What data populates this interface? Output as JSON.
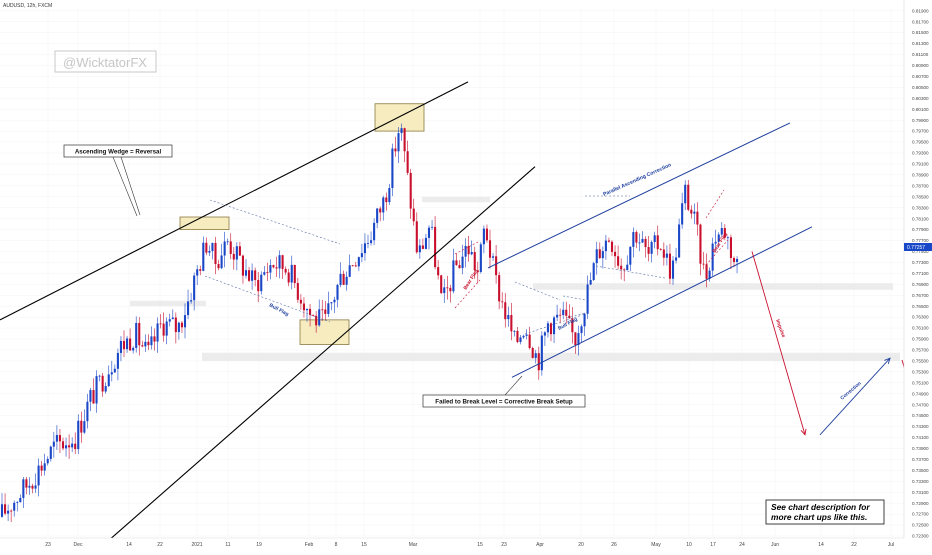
{
  "header": {
    "symbol_line": "AUDUSD, 12h, FXCM"
  },
  "watermark": {
    "text": "@WicktatorFX"
  },
  "annotations": {
    "wedge_label": "Ascending Wedge = Reversal",
    "failed_break_label": "Failed to Break Level = Corrective Break Setup",
    "parallel_channel_label": "Parallel Ascending Correction",
    "bull_flag_1": "Bull Flag",
    "bull_flag_2": "Bull Flag",
    "bear_flag_1": "Bear Flag",
    "bear_flag_2": "Bear Flag",
    "impulse_label": "Impulse",
    "correction_label": "Correction",
    "info_box_line1": "See chart description for",
    "info_box_line2": "more chart ups like this."
  },
  "price_tag": {
    "value": "0.77257",
    "color": "#1848c8"
  },
  "colors": {
    "bull": "#1a47c8",
    "bear": "#c8102e",
    "channel": "#1f3f9e",
    "wedge": "#000000",
    "projection": "#c8102e",
    "zone": "#f6ecc0"
  },
  "chart_data": {
    "type": "candlestick",
    "instrument": "AUDUSD",
    "timeframe": "12h",
    "source": "FXCM",
    "ylim": [
      0.723,
      0.8195
    ],
    "y_ticks": [
      "0.81900",
      "0.81700",
      "0.81500",
      "0.81300",
      "0.81100",
      "0.80900",
      "0.80700",
      "0.80500",
      "0.80300",
      "0.80100",
      "0.79900",
      "0.79700",
      "0.79500",
      "0.79300",
      "0.79100",
      "0.78900",
      "0.78700",
      "0.78500",
      "0.78300",
      "0.78100",
      "0.77900",
      "0.77700",
      "0.77500",
      "0.77300",
      "0.77100",
      "0.76900",
      "0.76700",
      "0.76500",
      "0.76300",
      "0.76100",
      "0.75900",
      "0.75700",
      "0.75500",
      "0.75300",
      "0.75100",
      "0.74900",
      "0.74700",
      "0.74500",
      "0.74300",
      "0.74100",
      "0.73900",
      "0.73700",
      "0.73500",
      "0.73300",
      "0.73100",
      "0.72900",
      "0.72700",
      "0.72500",
      "0.72300"
    ],
    "x_ticks": [
      "23",
      "Dec",
      "14",
      "22",
      "2021",
      "11",
      "19",
      "Feb",
      "8",
      "15",
      "Mar",
      "15",
      "23",
      "Apr",
      "20",
      "26",
      "May",
      "10",
      "17",
      "24",
      "Jun",
      "14",
      "22",
      "Jul"
    ],
    "trend_waypoints": [
      [
        0,
        0.7265
      ],
      [
        30,
        0.733
      ],
      [
        55,
        0.7395
      ],
      [
        75,
        0.741
      ],
      [
        90,
        0.748
      ],
      [
        105,
        0.7525
      ],
      [
        120,
        0.7575
      ],
      [
        135,
        0.76
      ],
      [
        148,
        0.756
      ],
      [
        162,
        0.762
      ],
      [
        178,
        0.761
      ],
      [
        188,
        0.766
      ],
      [
        198,
        0.772
      ],
      [
        207,
        0.777
      ],
      [
        215,
        0.773
      ],
      [
        228,
        0.777
      ],
      [
        240,
        0.773
      ],
      [
        255,
        0.769
      ],
      [
        272,
        0.773
      ],
      [
        288,
        0.772
      ],
      [
        298,
        0.768
      ],
      [
        312,
        0.763
      ],
      [
        325,
        0.762
      ],
      [
        340,
        0.77
      ],
      [
        355,
        0.774
      ],
      [
        370,
        0.778
      ],
      [
        385,
        0.785
      ],
      [
        400,
        0.7985
      ],
      [
        410,
        0.785
      ],
      [
        418,
        0.774
      ],
      [
        430,
        0.78
      ],
      [
        442,
        0.765
      ],
      [
        455,
        0.772
      ],
      [
        468,
        0.776
      ],
      [
        478,
        0.771
      ],
      [
        485,
        0.78
      ],
      [
        495,
        0.77
      ],
      [
        505,
        0.764
      ],
      [
        515,
        0.758
      ],
      [
        525,
        0.762
      ],
      [
        538,
        0.755
      ],
      [
        548,
        0.762
      ],
      [
        562,
        0.763
      ],
      [
        575,
        0.759
      ],
      [
        588,
        0.768
      ],
      [
        598,
        0.775
      ],
      [
        610,
        0.778
      ],
      [
        622,
        0.772
      ],
      [
        635,
        0.779
      ],
      [
        648,
        0.774
      ],
      [
        660,
        0.777
      ],
      [
        672,
        0.771
      ],
      [
        685,
        0.786
      ],
      [
        695,
        0.78
      ],
      [
        705,
        0.77
      ],
      [
        715,
        0.778
      ],
      [
        725,
        0.779
      ],
      [
        735,
        0.773
      ],
      [
        740,
        0.7725
      ]
    ],
    "overlays": {
      "wedge_upper": [
        [
          0,
          0.7625
        ],
        [
          468,
          0.806
        ]
      ],
      "wedge_lower": [
        [
          95,
          0.72
        ],
        [
          535,
          0.7905
        ]
      ],
      "channel_upper": [
        [
          488,
          0.772
        ],
        [
          790,
          0.7985
        ]
      ],
      "channel_lower": [
        [
          512,
          0.752
        ],
        [
          812,
          0.7795
        ]
      ],
      "impulse_arrow": [
        [
          752,
          0.775
        ],
        [
          805,
          0.7415
        ]
      ],
      "correction_arrow": [
        [
          820,
          0.7415
        ],
        [
          890,
          0.7555
        ]
      ],
      "zones": [
        [
          180,
          0.779,
          229,
          0.7813
        ],
        [
          375,
          0.797,
          424,
          0.802
        ],
        [
          300,
          0.758,
          349,
          0.7625
        ]
      ],
      "resistance_bands": [
        [
          130,
          0.765,
          206,
          0.766
        ],
        [
          202,
          0.755,
          900,
          0.7565
        ],
        [
          533,
          0.768,
          893,
          0.7692
        ],
        [
          422,
          0.784,
          490,
          0.785
        ]
      ]
    }
  }
}
